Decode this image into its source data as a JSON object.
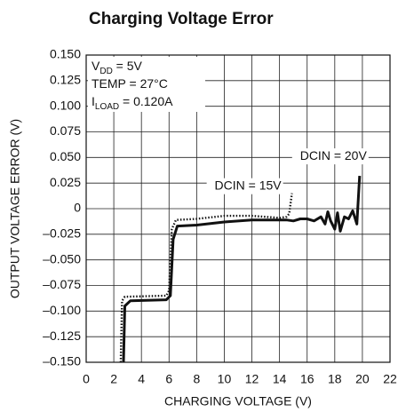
{
  "chart_data": {
    "type": "line",
    "title": "Charging Voltage Error",
    "x_label": "CHARGING VOLTAGE (V)",
    "y_label": "OUTPUT VOLTAGE ERROR (V)",
    "xlim": [
      0,
      22
    ],
    "xticks": [
      0,
      2,
      4,
      6,
      8,
      10,
      12,
      14,
      16,
      18,
      20,
      22
    ],
    "ylim": [
      -0.15,
      0.15
    ],
    "yticks": [
      {
        "value": -0.15,
        "label": "–0.150"
      },
      {
        "value": -0.125,
        "label": "–0.125"
      },
      {
        "value": -0.1,
        "label": "–0.100"
      },
      {
        "value": -0.075,
        "label": "–0.075"
      },
      {
        "value": -0.05,
        "label": "–0.050"
      },
      {
        "value": -0.025,
        "label": "–0.025"
      },
      0,
      0.025,
      {
        "value": 0.05,
        "label": "0.050"
      },
      0.075,
      {
        "value": 0.1,
        "label": "0.100"
      },
      0.125,
      {
        "value": 0.15,
        "label": "0.150"
      }
    ],
    "grid": true,
    "annotations": [
      {
        "main": "V",
        "sub": "DD",
        "rest": " = 5V"
      },
      {
        "main": "TEMP = 27°C",
        "sub": "",
        "rest": ""
      },
      {
        "main": "I",
        "sub": "LOAD",
        "rest": " = 0.120A"
      }
    ],
    "series": [
      {
        "name": "DCIN = 20V",
        "color": "#111",
        "style": "solid",
        "x": [
          2.7,
          2.8,
          3.2,
          5.8,
          6.1,
          6.3,
          6.6,
          8,
          10,
          12,
          14.5,
          15,
          15.5,
          16,
          16.5,
          17,
          17.3,
          17.5,
          17.7,
          18,
          18.2,
          18.4,
          18.7,
          19,
          19.3,
          19.6,
          19.8
        ],
        "values": [
          -0.15,
          -0.095,
          -0.09,
          -0.089,
          -0.085,
          -0.03,
          -0.017,
          -0.016,
          -0.013,
          -0.011,
          -0.011,
          -0.012,
          -0.01,
          -0.01,
          -0.012,
          -0.008,
          -0.015,
          -0.003,
          -0.012,
          -0.02,
          -0.004,
          -0.022,
          -0.008,
          -0.01,
          -0.002,
          -0.015,
          0.032
        ]
      },
      {
        "name": "DCIN = 15V",
        "color": "#111",
        "style": "dotted",
        "x": [
          2.5,
          2.6,
          2.8,
          5.8,
          6,
          6.2,
          6.5,
          8,
          10,
          12,
          14,
          14.5,
          14.7,
          14.9
        ],
        "values": [
          -0.15,
          -0.09,
          -0.086,
          -0.085,
          -0.08,
          -0.02,
          -0.011,
          -0.01,
          -0.007,
          -0.007,
          -0.009,
          -0.008,
          -0.005,
          0.015
        ]
      }
    ]
  }
}
